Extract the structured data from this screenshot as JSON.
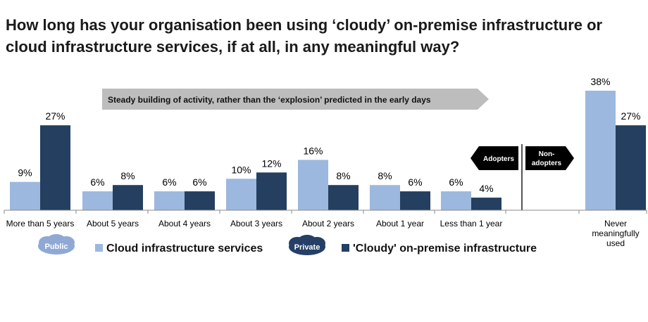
{
  "title": "How long has your organisation been using ‘cloudy’ on-premise infrastructure or cloud infrastructure services, if at all, in any meaningful way?",
  "banner": "Steady building of activity, rather than the ‘explosion’ predicted in the early days",
  "signs": {
    "adopters": "Adopters",
    "non_adopters_1": "Non-",
    "non_adopters_2": "adopters"
  },
  "legend": {
    "public_label": "Public",
    "private_label": "Private"
  },
  "colors": {
    "light": "#9db8de",
    "dark": "#243f5f",
    "banner": "#bdbdbd",
    "sign": "#000000",
    "cloud_public": "#8fa9d4",
    "cloud_private": "#253f66"
  },
  "chart_data": {
    "type": "bar",
    "categories": [
      "More than 5 years",
      "About 5 years",
      "About 4 years",
      "About 3 years",
      "About 2 years",
      "About 1 year",
      "Less than 1 year",
      "Never meaningfully used"
    ],
    "category_lines": [
      [
        "More than 5 years"
      ],
      [
        "About 5 years"
      ],
      [
        "About 4 years"
      ],
      [
        "About 3 years"
      ],
      [
        "About 2 years"
      ],
      [
        "About 1 year"
      ],
      [
        "Less than 1 year"
      ],
      [
        "Never",
        "meaningfully",
        "used"
      ]
    ],
    "series": [
      {
        "name": "Cloud infrastructure services",
        "values": [
          9,
          6,
          6,
          10,
          16,
          8,
          6,
          38
        ],
        "labels": [
          "9%",
          "6%",
          "6%",
          "10%",
          "16%",
          "8%",
          "6%",
          "38%"
        ]
      },
      {
        "name": "'Cloudy' on-premise infrastructure",
        "values": [
          27,
          8,
          6,
          12,
          8,
          6,
          4,
          27
        ],
        "labels": [
          "27%",
          "8%",
          "6%",
          "12%",
          "8%",
          "6%",
          "4%",
          "27%"
        ]
      }
    ],
    "ylim": [
      0,
      40
    ],
    "grid": false
  }
}
